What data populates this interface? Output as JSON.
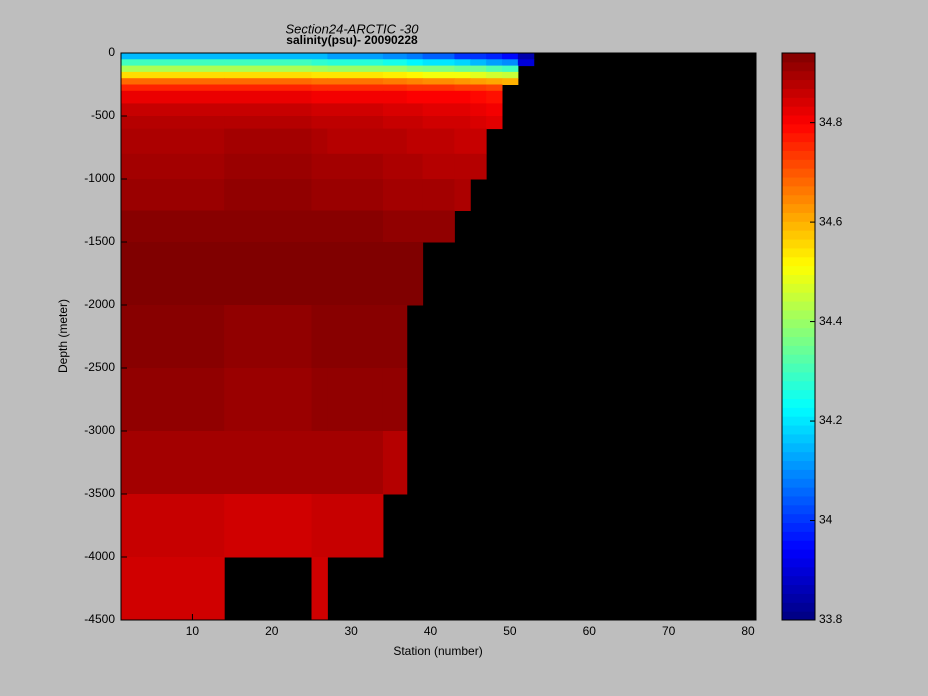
{
  "chart_data": {
    "type": "heatmap",
    "title": "Section24-ARCTIC  -30",
    "subtitle": "salinity(psu)- 20090228",
    "x_label": "Station (number)",
    "y_label": "Depth (meter)",
    "xlim": [
      1,
      81
    ],
    "xticks": [
      10,
      20,
      30,
      40,
      50,
      60,
      70,
      80
    ],
    "ylim": [
      -4500,
      0
    ],
    "yticks": [
      0,
      -500,
      -1000,
      -1500,
      -2000,
      -2500,
      -3000,
      -3500,
      -4000,
      -4500
    ],
    "x_edges": [
      1,
      14,
      25,
      27,
      34,
      37,
      39,
      43,
      45,
      47,
      49,
      51,
      53,
      81
    ],
    "y_edges": [
      0,
      -50,
      -100,
      -150,
      -200,
      -250,
      -300,
      -400,
      -500,
      -600,
      -800,
      -1000,
      -1250,
      -1500,
      -2000,
      -2500,
      -3000,
      -3500,
      -4000,
      -4500
    ],
    "values": [
      [
        34.15,
        34.15,
        34.15,
        34.12,
        34.1,
        34.08,
        34.05,
        34.0,
        34.0,
        33.98,
        33.95,
        33.85,
        null
      ],
      [
        34.3,
        34.3,
        34.28,
        34.27,
        34.25,
        34.22,
        34.2,
        34.18,
        34.15,
        34.12,
        34.1,
        33.9,
        null
      ],
      [
        34.42,
        34.42,
        34.41,
        34.4,
        34.4,
        34.38,
        34.37,
        34.35,
        34.35,
        34.32,
        34.3,
        null,
        null
      ],
      [
        34.55,
        34.55,
        34.54,
        34.54,
        34.53,
        34.52,
        34.5,
        34.5,
        34.48,
        34.46,
        34.45,
        null,
        null
      ],
      [
        34.68,
        34.68,
        34.67,
        34.67,
        34.66,
        34.65,
        34.64,
        34.63,
        34.62,
        34.61,
        34.6,
        null,
        null
      ],
      [
        34.76,
        34.76,
        34.75,
        34.75,
        34.75,
        34.74,
        34.74,
        34.73,
        34.73,
        34.72,
        null,
        null,
        null
      ],
      [
        34.82,
        34.82,
        34.81,
        34.81,
        34.81,
        34.8,
        34.8,
        34.8,
        34.79,
        34.78,
        null,
        null,
        null
      ],
      [
        34.86,
        34.86,
        34.85,
        34.85,
        34.84,
        34.84,
        34.83,
        34.83,
        34.82,
        34.81,
        null,
        null,
        null
      ],
      [
        34.88,
        34.88,
        34.87,
        34.87,
        34.86,
        34.86,
        34.85,
        34.85,
        34.84,
        34.83,
        null,
        null,
        null
      ],
      [
        34.89,
        34.9,
        34.89,
        34.88,
        34.88,
        34.87,
        34.87,
        34.86,
        34.86,
        null,
        null,
        null,
        null
      ],
      [
        34.9,
        34.91,
        34.9,
        34.9,
        34.89,
        34.89,
        34.88,
        34.88,
        34.88,
        null,
        null,
        null,
        null
      ],
      [
        34.91,
        34.92,
        34.91,
        34.91,
        34.9,
        34.9,
        34.9,
        34.89,
        null,
        null,
        null,
        null,
        null
      ],
      [
        34.93,
        34.93,
        34.93,
        34.93,
        34.92,
        34.92,
        34.92,
        null,
        null,
        null,
        null,
        null,
        null
      ],
      [
        34.94,
        34.94,
        34.94,
        34.94,
        34.94,
        34.94,
        null,
        null,
        null,
        null,
        null,
        null,
        null
      ],
      [
        34.93,
        34.92,
        34.93,
        34.93,
        34.93,
        null,
        null,
        null,
        null,
        null,
        null,
        null,
        null
      ],
      [
        34.92,
        34.91,
        34.92,
        34.92,
        34.92,
        null,
        null,
        null,
        null,
        null,
        null,
        null,
        null
      ],
      [
        34.9,
        34.9,
        34.9,
        34.9,
        34.88,
        null,
        null,
        null,
        null,
        null,
        null,
        null,
        null
      ],
      [
        34.86,
        34.85,
        34.86,
        34.86,
        null,
        null,
        null,
        null,
        null,
        null,
        null,
        null,
        null
      ],
      [
        34.85,
        null,
        34.85,
        null,
        null,
        null,
        null,
        null,
        null,
        null,
        null,
        null,
        null
      ]
    ],
    "clim": [
      33.8,
      34.94
    ],
    "cticks": [
      33.8,
      34,
      34.2,
      34.4,
      34.6,
      34.8
    ],
    "colormap": "jet",
    "background": "#000000"
  }
}
